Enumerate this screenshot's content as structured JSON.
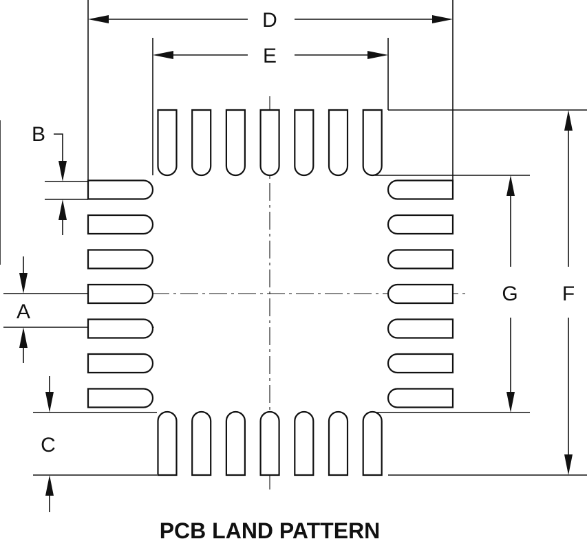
{
  "diagram": {
    "title": "PCB LAND PATTERN",
    "labels": {
      "D": "D",
      "E": "E",
      "B": "B",
      "A": "A",
      "C": "C",
      "G": "G",
      "F": "F"
    },
    "pads_per_side": 7
  }
}
